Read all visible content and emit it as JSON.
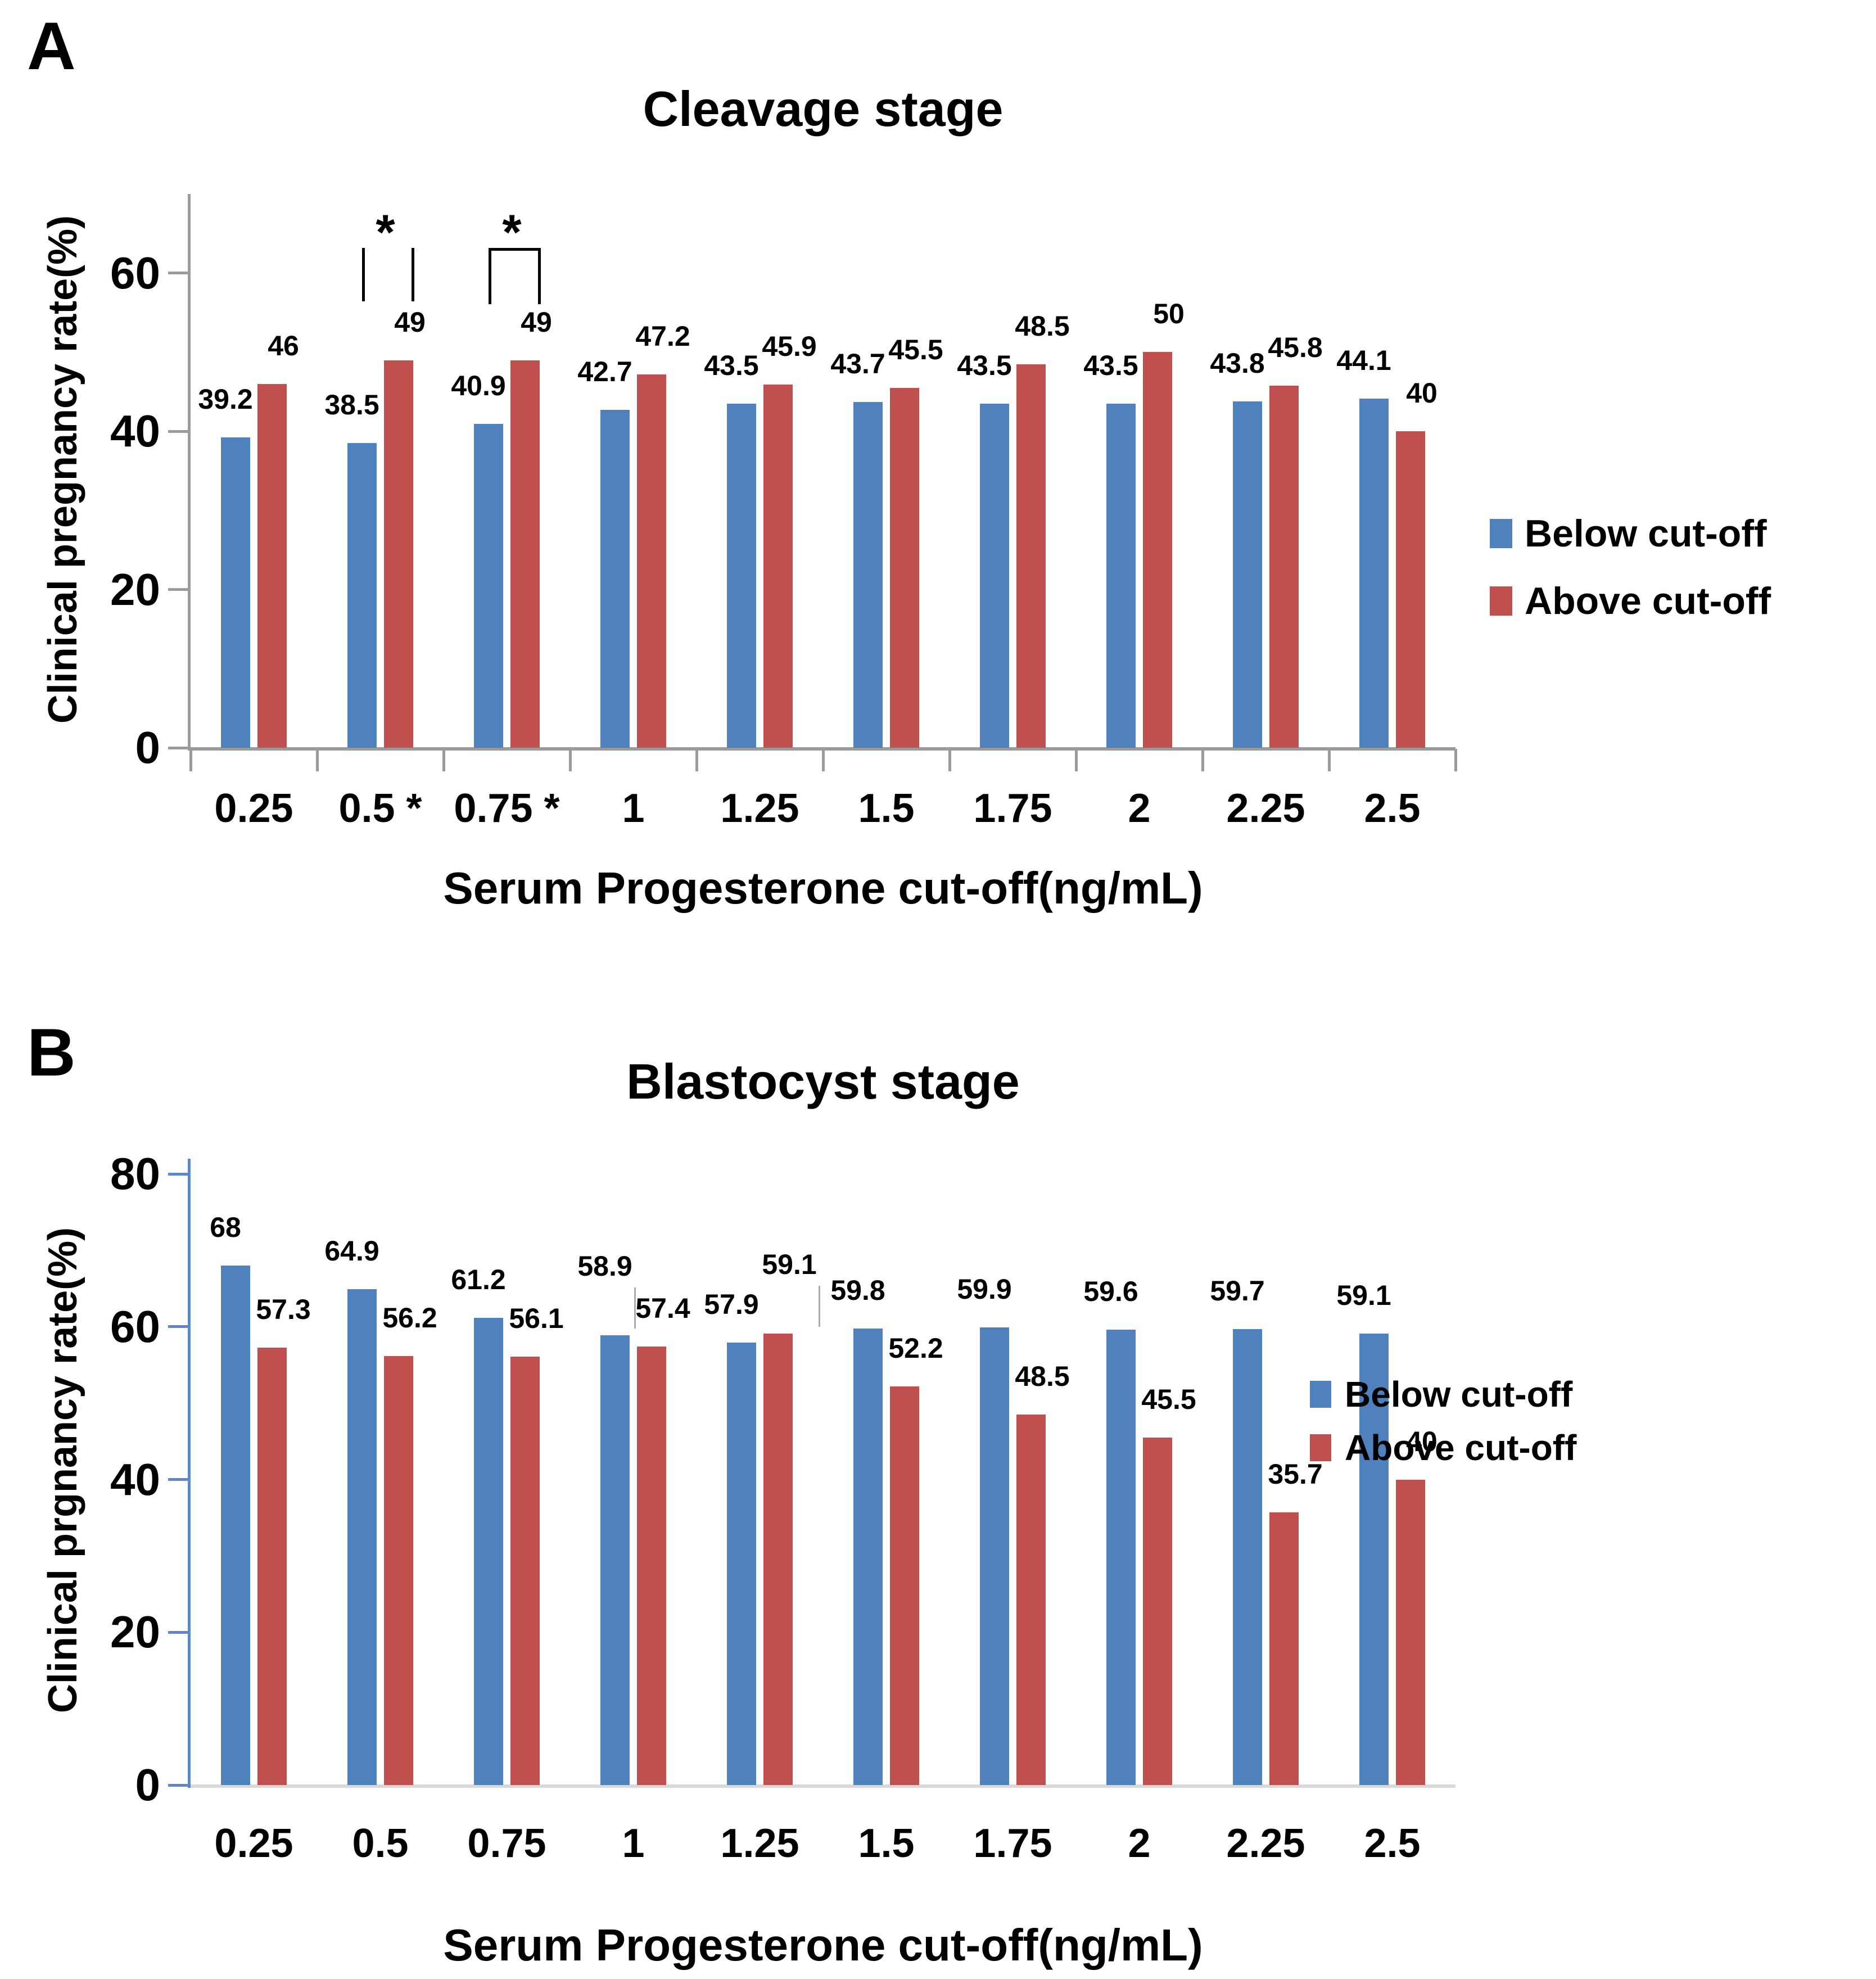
{
  "figure": {
    "panels": [
      {
        "letter": "A"
      },
      {
        "letter": "B"
      }
    ]
  },
  "chart_data": [
    {
      "type": "bar",
      "panel": "A",
      "title": "Cleavage stage",
      "xlabel": "Serum Progesterone cut-off(ng/mL)",
      "ylabel": "Clinical pregnancy rate(%)",
      "categories": [
        "0.25",
        "0.5",
        "0.75",
        "1",
        "1.25",
        "1.5",
        "1.75",
        "2",
        "2.25",
        "2.5"
      ],
      "x_tick_labels": [
        "0.25",
        "0.5 *",
        "0.75 *",
        "1",
        "1.25",
        "1.5",
        "1.75",
        "2",
        "2.25",
        "2.5"
      ],
      "series": [
        {
          "name": "Below cut-off",
          "color": "#4F81BD",
          "values": [
            39.2,
            38.5,
            40.9,
            42.7,
            43.5,
            43.7,
            43.5,
            43.5,
            43.8,
            44.1
          ]
        },
        {
          "name": "Above cut-off",
          "color": "#C0504D",
          "values": [
            46,
            49,
            49,
            47.2,
            45.9,
            45.5,
            48.5,
            50,
            45.8,
            40
          ]
        }
      ],
      "ylim": [
        0,
        70
      ],
      "yticks": [
        0,
        20,
        40,
        60
      ],
      "grid": false,
      "legend_position": "right-middle",
      "axis_color": "#9B9B9B",
      "baseline_color": "#9B9B9B",
      "annotations": [
        {
          "type": "significance",
          "symbol": "*",
          "category_index": 1,
          "bracket": "open"
        },
        {
          "type": "significance",
          "symbol": "*",
          "category_index": 2,
          "bracket": "closed"
        }
      ]
    },
    {
      "type": "bar",
      "panel": "B",
      "title": "Blastocyst stage",
      "xlabel": "Serum Progesterone cut-off(ng/mL)",
      "ylabel": "Clinical prgnancy rate(%)",
      "categories": [
        "0.25",
        "0.5",
        "0.75",
        "1",
        "1.25",
        "1.5",
        "1.75",
        "2",
        "2.25",
        "2.5"
      ],
      "x_tick_labels": [
        "0.25",
        "0.5",
        "0.75",
        "1",
        "1.25",
        "1.5",
        "1.75",
        "2",
        "2.25",
        "2.5"
      ],
      "series": [
        {
          "name": "Below cut-off",
          "color": "#4F81BD",
          "values": [
            68,
            64.9,
            61.2,
            58.9,
            57.9,
            59.8,
            59.9,
            59.6,
            59.7,
            59.1
          ]
        },
        {
          "name": "Above cut-off",
          "color": "#C0504D",
          "values": [
            57.3,
            56.2,
            56.1,
            57.4,
            59.1,
            52.2,
            48.5,
            45.5,
            35.7,
            40
          ]
        }
      ],
      "ylim": [
        0,
        82
      ],
      "yticks": [
        0,
        20,
        40,
        60,
        80
      ],
      "grid": false,
      "legend_position": "right-middle",
      "axis_color": "#5C88C5",
      "baseline_color": "#D9D9D9",
      "annotations": [
        {
          "type": "leader-line",
          "series_index": 0,
          "category_index": 3
        },
        {
          "type": "leader-line",
          "series_index": 1,
          "category_index": 4
        }
      ]
    }
  ]
}
